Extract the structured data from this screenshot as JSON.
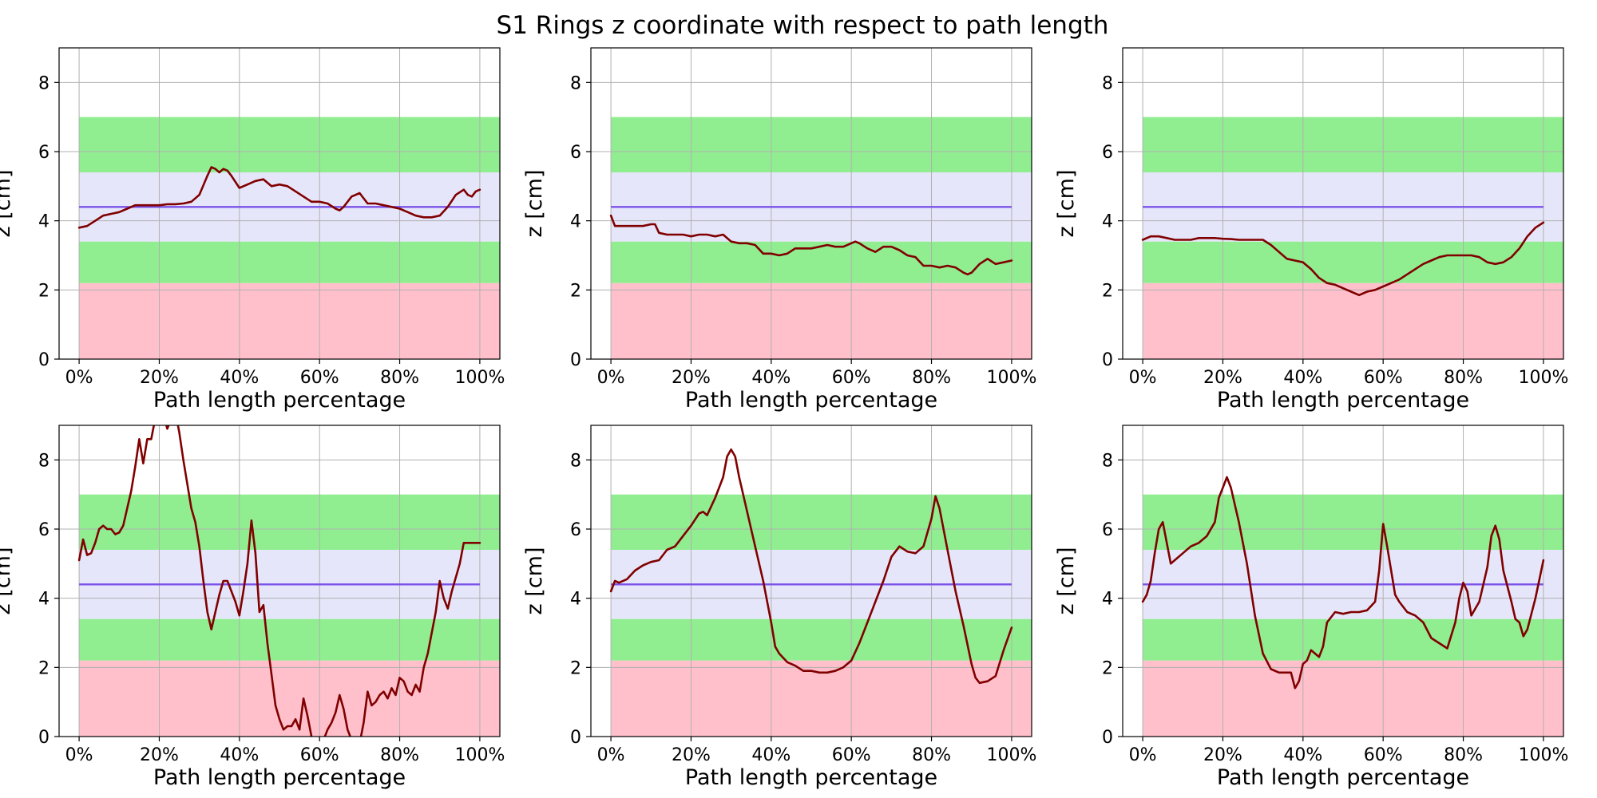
{
  "figure": {
    "title": "S1 Rings z coordinate with respect to path length"
  },
  "colors": {
    "red_zone": "#FFC0CB",
    "green_zone": "#90EE90",
    "lavender_zone": "#E6E6FA",
    "reference_line": "#7B52E8",
    "trace": "#800000",
    "grid": "#B0B0B0",
    "axes": "#000000"
  },
  "chart_data": [
    {
      "type": "line",
      "xlabel": "Path length percentage",
      "ylabel": "z [cm]",
      "xlim": [
        -5,
        105
      ],
      "ylim": [
        0,
        9
      ],
      "xticks": [
        0,
        20,
        40,
        60,
        80,
        100
      ],
      "xtick_labels": [
        "0%",
        "20%",
        "40%",
        "60%",
        "80%",
        "100%"
      ],
      "yticks": [
        0,
        2,
        4,
        6,
        8
      ],
      "ytick_labels": [
        "0",
        "2",
        "4",
        "6",
        "8"
      ],
      "bands": [
        {
          "from": 0,
          "to": 2.2,
          "color": "red_zone"
        },
        {
          "from": 2.2,
          "to": 3.4,
          "color": "green_zone"
        },
        {
          "from": 3.4,
          "to": 5.4,
          "color": "lavender_zone"
        },
        {
          "from": 5.4,
          "to": 7.0,
          "color": "green_zone"
        }
      ],
      "reference_y": 4.4,
      "band_x_range": [
        0,
        105
      ],
      "x": [
        0,
        2,
        4,
        6,
        8,
        10,
        12,
        14,
        16,
        18,
        20,
        22,
        24,
        26,
        28,
        30,
        32,
        33,
        34,
        35,
        36,
        37,
        38,
        40,
        42,
        44,
        46,
        48,
        50,
        52,
        54,
        56,
        58,
        60,
        62,
        64,
        65,
        66,
        68,
        70,
        72,
        74,
        76,
        78,
        80,
        82,
        84,
        86,
        88,
        90,
        92,
        94,
        96,
        97,
        98,
        99,
        100
      ],
      "y": [
        3.8,
        3.85,
        4.0,
        4.15,
        4.2,
        4.25,
        4.35,
        4.45,
        4.45,
        4.45,
        4.45,
        4.48,
        4.48,
        4.5,
        4.55,
        4.75,
        5.3,
        5.55,
        5.5,
        5.4,
        5.5,
        5.45,
        5.3,
        4.95,
        5.05,
        5.15,
        5.2,
        5.0,
        5.05,
        5.0,
        4.85,
        4.7,
        4.55,
        4.55,
        4.5,
        4.35,
        4.3,
        4.4,
        4.7,
        4.8,
        4.5,
        4.5,
        4.45,
        4.4,
        4.35,
        4.25,
        4.15,
        4.1,
        4.1,
        4.15,
        4.4,
        4.75,
        4.9,
        4.75,
        4.7,
        4.85,
        4.9
      ]
    },
    {
      "type": "line",
      "xlabel": "Path length percentage",
      "ylabel": "z [cm]",
      "xlim": [
        -5,
        105
      ],
      "ylim": [
        0,
        9
      ],
      "xticks": [
        0,
        20,
        40,
        60,
        80,
        100
      ],
      "xtick_labels": [
        "0%",
        "20%",
        "40%",
        "60%",
        "80%",
        "100%"
      ],
      "yticks": [
        0,
        2,
        4,
        6,
        8
      ],
      "ytick_labels": [
        "0",
        "2",
        "4",
        "6",
        "8"
      ],
      "bands": [
        {
          "from": 0,
          "to": 2.2,
          "color": "red_zone"
        },
        {
          "from": 2.2,
          "to": 3.4,
          "color": "green_zone"
        },
        {
          "from": 3.4,
          "to": 5.4,
          "color": "lavender_zone"
        },
        {
          "from": 5.4,
          "to": 7.0,
          "color": "green_zone"
        }
      ],
      "reference_y": 4.4,
      "band_x_range": [
        0,
        105
      ],
      "x": [
        0,
        1,
        2,
        4,
        6,
        8,
        10,
        11,
        12,
        14,
        16,
        18,
        20,
        22,
        24,
        26,
        28,
        30,
        32,
        34,
        36,
        38,
        40,
        42,
        44,
        46,
        48,
        50,
        52,
        54,
        56,
        58,
        60,
        61,
        62,
        64,
        66,
        68,
        70,
        72,
        74,
        76,
        78,
        80,
        82,
        84,
        86,
        88,
        89,
        90,
        92,
        94,
        96,
        98,
        100
      ],
      "y": [
        4.15,
        3.85,
        3.85,
        3.85,
        3.85,
        3.85,
        3.9,
        3.9,
        3.65,
        3.6,
        3.6,
        3.6,
        3.55,
        3.6,
        3.6,
        3.55,
        3.6,
        3.4,
        3.35,
        3.35,
        3.3,
        3.05,
        3.05,
        3.0,
        3.05,
        3.2,
        3.2,
        3.2,
        3.25,
        3.3,
        3.25,
        3.25,
        3.35,
        3.4,
        3.35,
        3.2,
        3.1,
        3.25,
        3.25,
        3.15,
        3.0,
        2.95,
        2.7,
        2.7,
        2.65,
        2.7,
        2.65,
        2.5,
        2.45,
        2.5,
        2.75,
        2.9,
        2.75,
        2.8,
        2.85
      ]
    },
    {
      "type": "line",
      "xlabel": "Path length percentage",
      "ylabel": "z [cm]",
      "xlim": [
        -5,
        105
      ],
      "ylim": [
        0,
        9
      ],
      "xticks": [
        0,
        20,
        40,
        60,
        80,
        100
      ],
      "xtick_labels": [
        "0%",
        "20%",
        "40%",
        "60%",
        "80%",
        "100%"
      ],
      "yticks": [
        0,
        2,
        4,
        6,
        8
      ],
      "ytick_labels": [
        "0",
        "2",
        "4",
        "6",
        "8"
      ],
      "bands": [
        {
          "from": 0,
          "to": 2.2,
          "color": "red_zone"
        },
        {
          "from": 2.2,
          "to": 3.4,
          "color": "green_zone"
        },
        {
          "from": 3.4,
          "to": 5.4,
          "color": "lavender_zone"
        },
        {
          "from": 5.4,
          "to": 7.0,
          "color": "green_zone"
        }
      ],
      "reference_y": 4.4,
      "band_x_range": [
        0,
        105
      ],
      "x": [
        0,
        2,
        4,
        6,
        8,
        10,
        12,
        14,
        16,
        18,
        20,
        22,
        24,
        26,
        28,
        30,
        32,
        34,
        36,
        38,
        40,
        42,
        44,
        46,
        48,
        50,
        52,
        54,
        56,
        58,
        60,
        62,
        64,
        66,
        68,
        70,
        72,
        74,
        76,
        78,
        80,
        82,
        84,
        86,
        88,
        90,
        92,
        94,
        96,
        98,
        100
      ],
      "y": [
        3.45,
        3.55,
        3.55,
        3.5,
        3.45,
        3.45,
        3.45,
        3.5,
        3.5,
        3.5,
        3.48,
        3.47,
        3.45,
        3.45,
        3.45,
        3.45,
        3.3,
        3.1,
        2.9,
        2.85,
        2.8,
        2.6,
        2.35,
        2.2,
        2.15,
        2.05,
        1.95,
        1.85,
        1.95,
        2.0,
        2.1,
        2.2,
        2.3,
        2.45,
        2.6,
        2.75,
        2.85,
        2.95,
        3.0,
        3.0,
        3.0,
        3.0,
        2.95,
        2.8,
        2.75,
        2.8,
        2.95,
        3.2,
        3.55,
        3.8,
        3.95
      ]
    },
    {
      "type": "line",
      "xlabel": "Path length percentage",
      "ylabel": "z [cm]",
      "xlim": [
        -5,
        105
      ],
      "ylim": [
        0,
        9
      ],
      "xticks": [
        0,
        20,
        40,
        60,
        80,
        100
      ],
      "xtick_labels": [
        "0%",
        "20%",
        "40%",
        "60%",
        "80%",
        "100%"
      ],
      "yticks": [
        0,
        2,
        4,
        6,
        8
      ],
      "ytick_labels": [
        "0",
        "2",
        "4",
        "6",
        "8"
      ],
      "bands": [
        {
          "from": 0,
          "to": 2.2,
          "color": "red_zone"
        },
        {
          "from": 2.2,
          "to": 3.4,
          "color": "green_zone"
        },
        {
          "from": 3.4,
          "to": 5.4,
          "color": "lavender_zone"
        },
        {
          "from": 5.4,
          "to": 7.0,
          "color": "green_zone"
        }
      ],
      "reference_y": 4.4,
      "band_x_range": [
        0,
        105
      ],
      "x": [
        0,
        1,
        2,
        3,
        4,
        5,
        6,
        7,
        8,
        9,
        10,
        11,
        12,
        13,
        14,
        15,
        16,
        17,
        18,
        19,
        20,
        21,
        22,
        23,
        24,
        25,
        26,
        27,
        28,
        29,
        30,
        31,
        32,
        33,
        34,
        35,
        36,
        37,
        38,
        39,
        40,
        41,
        42,
        43,
        44,
        45,
        46,
        47,
        48,
        49,
        50,
        51,
        52,
        53,
        54,
        55,
        56,
        57,
        58,
        59,
        60,
        61,
        62,
        63,
        64,
        65,
        66,
        67,
        68,
        69,
        70,
        71,
        72,
        73,
        74,
        75,
        76,
        77,
        78,
        79,
        80,
        81,
        82,
        83,
        84,
        85,
        86,
        87,
        88,
        89,
        90,
        91,
        92,
        93,
        94,
        95,
        96,
        97,
        98,
        99,
        100
      ],
      "y": [
        5.1,
        5.7,
        5.25,
        5.3,
        5.6,
        6.0,
        6.1,
        6.0,
        6.0,
        5.85,
        5.9,
        6.1,
        6.6,
        7.1,
        7.8,
        8.6,
        7.9,
        8.6,
        8.6,
        9.2,
        9.5,
        9.3,
        8.9,
        9.2,
        9.4,
        8.8,
        8.0,
        7.3,
        6.6,
        6.2,
        5.5,
        4.5,
        3.6,
        3.1,
        3.6,
        4.1,
        4.5,
        4.5,
        4.2,
        3.9,
        3.5,
        4.2,
        5.0,
        6.25,
        5.3,
        3.6,
        3.8,
        2.7,
        1.8,
        0.9,
        0.5,
        0.2,
        0.3,
        0.3,
        0.5,
        0.2,
        1.1,
        0.6,
        0.0,
        -0.2,
        -0.3,
        -0.1,
        0.2,
        0.4,
        0.7,
        1.2,
        0.8,
        0.2,
        -0.1,
        -0.3,
        -0.2,
        0.4,
        1.3,
        0.9,
        1.0,
        1.2,
        1.3,
        1.1,
        1.4,
        1.2,
        1.7,
        1.6,
        1.3,
        1.2,
        1.5,
        1.3,
        2.0,
        2.4,
        3.0,
        3.6,
        4.5,
        4.0,
        3.7,
        4.2,
        4.6,
        5.0,
        5.6,
        5.6,
        5.6,
        5.6,
        5.6
      ]
    },
    {
      "type": "line",
      "xlabel": "Path length percentage",
      "ylabel": "z [cm]",
      "xlim": [
        -5,
        105
      ],
      "ylim": [
        0,
        9
      ],
      "xticks": [
        0,
        20,
        40,
        60,
        80,
        100
      ],
      "xtick_labels": [
        "0%",
        "20%",
        "40%",
        "60%",
        "80%",
        "100%"
      ],
      "yticks": [
        0,
        2,
        4,
        6,
        8
      ],
      "ytick_labels": [
        "0",
        "2",
        "4",
        "6",
        "8"
      ],
      "bands": [
        {
          "from": 0,
          "to": 2.2,
          "color": "red_zone"
        },
        {
          "from": 2.2,
          "to": 3.4,
          "color": "green_zone"
        },
        {
          "from": 3.4,
          "to": 5.4,
          "color": "lavender_zone"
        },
        {
          "from": 5.4,
          "to": 7.0,
          "color": "green_zone"
        }
      ],
      "reference_y": 4.4,
      "band_x_range": [
        0,
        105
      ],
      "x": [
        0,
        1,
        2,
        4,
        6,
        8,
        10,
        12,
        14,
        16,
        18,
        20,
        22,
        23,
        24,
        26,
        28,
        29,
        30,
        31,
        32,
        34,
        35,
        36,
        38,
        40,
        41,
        42,
        44,
        46,
        48,
        50,
        52,
        54,
        56,
        58,
        60,
        62,
        64,
        66,
        68,
        70,
        72,
        74,
        76,
        78,
        80,
        81,
        82,
        83,
        84,
        86,
        88,
        90,
        91,
        92,
        94,
        96,
        98,
        100
      ],
      "y": [
        4.2,
        4.5,
        4.45,
        4.55,
        4.8,
        4.95,
        5.05,
        5.1,
        5.4,
        5.5,
        5.8,
        6.1,
        6.45,
        6.5,
        6.4,
        6.9,
        7.5,
        8.1,
        8.3,
        8.1,
        7.5,
        6.5,
        6.0,
        5.5,
        4.5,
        3.3,
        2.6,
        2.4,
        2.15,
        2.05,
        1.9,
        1.9,
        1.85,
        1.85,
        1.9,
        2.0,
        2.2,
        2.7,
        3.3,
        3.9,
        4.5,
        5.2,
        5.5,
        5.35,
        5.3,
        5.5,
        6.3,
        6.95,
        6.6,
        6.0,
        5.4,
        4.2,
        3.2,
        2.1,
        1.7,
        1.55,
        1.6,
        1.75,
        2.5,
        3.15
      ]
    },
    {
      "type": "line",
      "xlabel": "Path length percentage",
      "ylabel": "z [cm]",
      "xlim": [
        -5,
        105
      ],
      "ylim": [
        0,
        9
      ],
      "xticks": [
        0,
        20,
        40,
        60,
        80,
        100
      ],
      "xtick_labels": [
        "0%",
        "20%",
        "40%",
        "60%",
        "80%",
        "100%"
      ],
      "yticks": [
        0,
        2,
        4,
        6,
        8
      ],
      "ytick_labels": [
        "0",
        "2",
        "4",
        "6",
        "8"
      ],
      "bands": [
        {
          "from": 0,
          "to": 2.2,
          "color": "red_zone"
        },
        {
          "from": 2.2,
          "to": 3.4,
          "color": "green_zone"
        },
        {
          "from": 3.4,
          "to": 5.4,
          "color": "lavender_zone"
        },
        {
          "from": 5.4,
          "to": 7.0,
          "color": "green_zone"
        }
      ],
      "reference_y": 4.4,
      "band_x_range": [
        0,
        105
      ],
      "x": [
        0,
        1,
        2,
        3,
        4,
        5,
        6,
        7,
        8,
        10,
        12,
        14,
        16,
        18,
        19,
        20,
        21,
        22,
        24,
        26,
        28,
        30,
        32,
        34,
        36,
        37,
        38,
        39,
        40,
        41,
        42,
        43,
        44,
        45,
        46,
        48,
        50,
        52,
        54,
        56,
        58,
        59,
        60,
        61,
        62,
        63,
        64,
        66,
        68,
        70,
        72,
        74,
        76,
        78,
        79,
        80,
        81,
        82,
        84,
        86,
        87,
        88,
        89,
        90,
        92,
        93,
        94,
        95,
        96,
        98,
        100
      ],
      "y": [
        3.9,
        4.1,
        4.5,
        5.3,
        6.0,
        6.2,
        5.6,
        5.0,
        5.1,
        5.3,
        5.5,
        5.6,
        5.8,
        6.2,
        6.9,
        7.2,
        7.5,
        7.2,
        6.2,
        5.0,
        3.5,
        2.4,
        1.95,
        1.85,
        1.85,
        1.85,
        1.4,
        1.6,
        2.1,
        2.2,
        2.5,
        2.4,
        2.3,
        2.6,
        3.3,
        3.6,
        3.55,
        3.6,
        3.6,
        3.65,
        3.9,
        4.8,
        6.15,
        5.5,
        4.8,
        4.1,
        3.9,
        3.6,
        3.5,
        3.3,
        2.85,
        2.7,
        2.55,
        3.3,
        4.0,
        4.45,
        4.2,
        3.5,
        3.9,
        4.9,
        5.8,
        6.1,
        5.7,
        4.8,
        3.9,
        3.4,
        3.3,
        2.9,
        3.1,
        4.0,
        5.1
      ]
    }
  ]
}
